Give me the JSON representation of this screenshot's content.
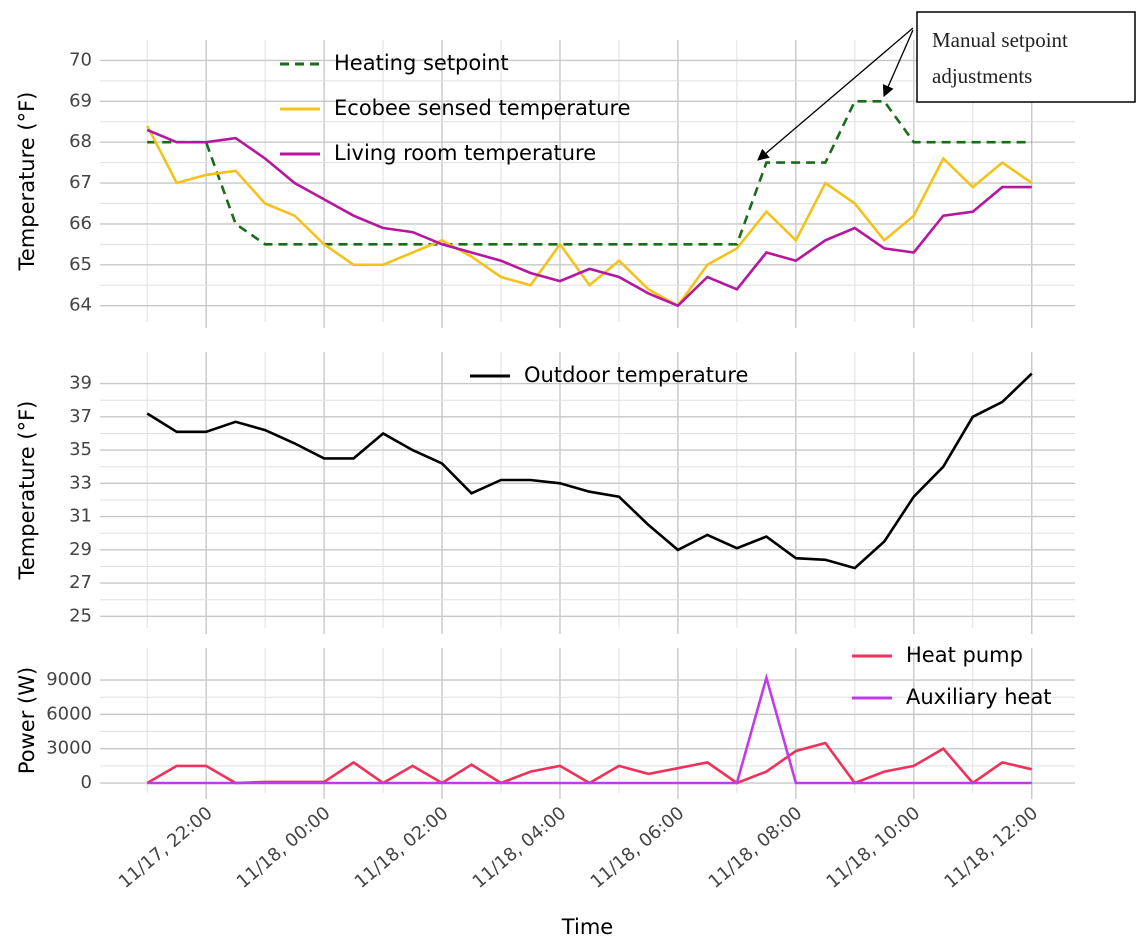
{
  "chart_data": [
    {
      "type": "line",
      "ylabel": "Temperature (°F)",
      "legend": "upper left",
      "x": [
        "11/17, 21:00",
        "11/17, 21:30",
        "11/17, 22:00",
        "11/17, 22:30",
        "11/17, 23:00",
        "11/17, 23:30",
        "11/18, 00:00",
        "11/18, 00:30",
        "11/18, 01:00",
        "11/18, 01:30",
        "11/18, 02:00",
        "11/18, 02:30",
        "11/18, 03:00",
        "11/18, 03:30",
        "11/18, 04:00",
        "11/18, 04:30",
        "11/18, 05:00",
        "11/18, 05:30",
        "11/18, 06:00",
        "11/18, 06:30",
        "11/18, 07:00",
        "11/18, 07:30",
        "11/18, 08:00",
        "11/18, 08:30",
        "11/18, 09:00",
        "11/18, 09:30",
        "11/18, 10:00",
        "11/18, 10:30",
        "11/18, 11:00",
        "11/18, 11:30",
        "11/18, 12:00"
      ],
      "xlim": [
        "11/17, 20:12",
        "11/18, 12:44"
      ],
      "ylim": [
        63.6,
        70.5
      ],
      "yticks": [
        64,
        65,
        66,
        67,
        68,
        69,
        70
      ],
      "grid": true,
      "series": [
        {
          "name": "Heating setpoint",
          "color": "#1b6b1b",
          "linestyle": "dashed",
          "values": [
            68,
            68,
            68,
            66,
            65.5,
            65.5,
            65.5,
            65.5,
            65.5,
            65.5,
            65.5,
            65.5,
            65.5,
            65.5,
            65.5,
            65.5,
            65.5,
            65.5,
            65.5,
            65.5,
            65.5,
            67.5,
            67.5,
            67.5,
            69,
            69,
            68,
            68,
            68,
            68,
            68
          ]
        },
        {
          "name": "Ecobee sensed temperature",
          "color": "#f5c21b",
          "linestyle": "solid",
          "values": [
            68.4,
            67.0,
            67.2,
            67.3,
            66.5,
            66.2,
            65.5,
            65.0,
            65.0,
            65.3,
            65.6,
            65.2,
            64.7,
            64.5,
            65.5,
            64.5,
            65.1,
            64.4,
            64.0,
            65.0,
            65.4,
            66.3,
            65.6,
            67.0,
            66.5,
            65.6,
            66.2,
            67.6,
            66.9,
            67.5,
            67.0
          ]
        },
        {
          "name": "Living room temperature",
          "color": "#b5179e",
          "linestyle": "solid",
          "values": [
            68.3,
            68.0,
            68.0,
            68.1,
            67.6,
            67.0,
            66.6,
            66.2,
            65.9,
            65.8,
            65.5,
            65.3,
            65.1,
            64.8,
            64.6,
            64.9,
            64.7,
            64.3,
            64.0,
            64.7,
            64.4,
            65.3,
            65.1,
            65.6,
            65.9,
            65.4,
            65.3,
            66.2,
            66.3,
            66.9,
            66.9
          ]
        }
      ],
      "annotation": [
        "Manual setpoint",
        "adjustments"
      ]
    },
    {
      "type": "line",
      "ylabel": "Temperature (°F)",
      "legend": "upper center",
      "x": [
        "11/17, 21:00",
        "11/17, 21:30",
        "11/17, 22:00",
        "11/17, 22:30",
        "11/17, 23:00",
        "11/17, 23:30",
        "11/18, 00:00",
        "11/18, 00:30",
        "11/18, 01:00",
        "11/18, 01:30",
        "11/18, 02:00",
        "11/18, 02:30",
        "11/18, 03:00",
        "11/18, 03:30",
        "11/18, 04:00",
        "11/18, 04:30",
        "11/18, 05:00",
        "11/18, 05:30",
        "11/18, 06:00",
        "11/18, 06:30",
        "11/18, 07:00",
        "11/18, 07:30",
        "11/18, 08:00",
        "11/18, 08:30",
        "11/18, 09:00",
        "11/18, 09:30",
        "11/18, 10:00",
        "11/18, 10:30",
        "11/18, 11:00",
        "11/18, 11:30",
        "11/18, 12:00"
      ],
      "xlim": [
        "11/17, 20:12",
        "11/18, 12:44"
      ],
      "ylim": [
        24.3,
        40.9
      ],
      "yticks": [
        25,
        27,
        29,
        31,
        33,
        35,
        37,
        39
      ],
      "grid": true,
      "series": [
        {
          "name": "Outdoor temperature",
          "color": "#000000",
          "linestyle": "solid",
          "values": [
            37.2,
            36.1,
            36.1,
            36.7,
            36.2,
            35.4,
            34.5,
            34.5,
            36.0,
            35.0,
            34.2,
            32.4,
            33.2,
            33.2,
            33.0,
            32.5,
            32.2,
            30.5,
            29.0,
            29.9,
            29.1,
            29.8,
            28.5,
            28.4,
            27.9,
            29.5,
            32.2,
            34.0,
            37.0,
            37.9,
            39.6
          ]
        }
      ]
    },
    {
      "type": "line",
      "ylabel": "Power (W)",
      "xlabel": "Time",
      "legend": "upper right",
      "x": [
        "11/17, 21:00",
        "11/17, 21:30",
        "11/17, 22:00",
        "11/17, 22:30",
        "11/17, 23:00",
        "11/17, 23:30",
        "11/18, 00:00",
        "11/18, 00:30",
        "11/18, 01:00",
        "11/18, 01:30",
        "11/18, 02:00",
        "11/18, 02:30",
        "11/18, 03:00",
        "11/18, 03:30",
        "11/18, 04:00",
        "11/18, 04:30",
        "11/18, 05:00",
        "11/18, 05:30",
        "11/18, 06:00",
        "11/18, 06:30",
        "11/18, 07:00",
        "11/18, 07:30",
        "11/18, 08:00",
        "11/18, 08:30",
        "11/18, 09:00",
        "11/18, 09:30",
        "11/18, 10:00",
        "11/18, 10:30",
        "11/18, 11:00",
        "11/18, 11:30",
        "11/18, 12:00"
      ],
      "xlim": [
        "11/17, 20:12",
        "11/18, 12:44"
      ],
      "xticks": [
        "11/17, 22:00",
        "11/18, 00:00",
        "11/18, 02:00",
        "11/18, 04:00",
        "11/18, 06:00",
        "11/18, 08:00",
        "11/18, 10:00",
        "11/18, 12:00"
      ],
      "ylim": [
        -870,
        11800
      ],
      "yticks": [
        0,
        3000,
        6000,
        9000
      ],
      "grid": true,
      "series": [
        {
          "name": "Heat pump",
          "color": "#f0325a",
          "linestyle": "solid",
          "values": [
            0,
            1500,
            1500,
            0,
            100,
            100,
            100,
            1800,
            0,
            1500,
            0,
            1600,
            0,
            1000,
            1500,
            0,
            1500,
            800,
            1300,
            1800,
            0,
            1000,
            2800,
            3500,
            0,
            1000,
            1500,
            3000,
            0,
            1800,
            1200
          ]
        },
        {
          "name": "Auxiliary heat",
          "color": "#c03ce8",
          "linestyle": "solid",
          "values": [
            0,
            0,
            0,
            0,
            0,
            0,
            0,
            0,
            0,
            0,
            0,
            0,
            0,
            0,
            0,
            0,
            0,
            0,
            0,
            0,
            0,
            9200,
            0,
            0,
            0,
            0,
            0,
            0,
            0,
            0,
            0
          ]
        }
      ]
    }
  ]
}
